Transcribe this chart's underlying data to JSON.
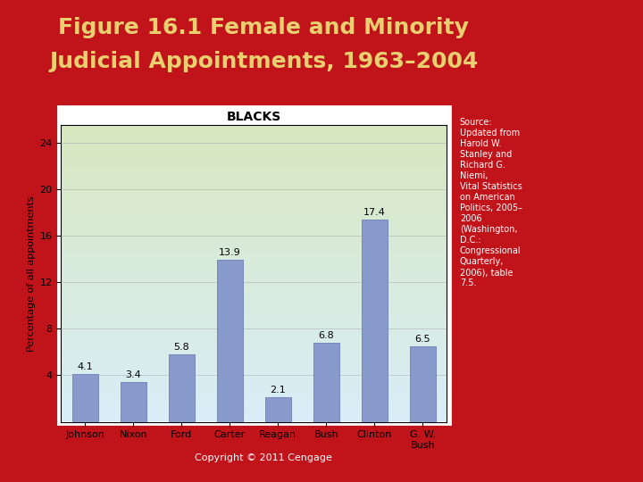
{
  "title_line1": "Figure 16.1 Female and Minority",
  "title_line2": "Judicial Appointments, 1963–2004",
  "title_color": "#E8D070",
  "title_fontsize": 18,
  "bg_color": "#C0141A",
  "chart_title": "BLACKS",
  "chart_title_fontsize": 10,
  "categories": [
    "Johnson",
    "Nixon",
    "Ford",
    "Carter",
    "Reagan",
    "Bush",
    "Clinton",
    "G. W.\nBush"
  ],
  "values": [
    4.1,
    3.4,
    5.8,
    13.9,
    2.1,
    6.8,
    17.4,
    6.5
  ],
  "bar_color": "#8899CC",
  "bar_edge_color": "#7788BB",
  "ylabel": "Percentage of all appointments",
  "ylabel_fontsize": 8,
  "yticks": [
    4,
    8,
    12,
    16,
    20,
    24
  ],
  "ytick_labels": [
    "4",
    "8",
    "12",
    "16",
    "20",
    "24"
  ],
  "ylim": [
    0,
    25.5
  ],
  "chart_bg_top": "#D8E8C0",
  "chart_bg_bottom": "#D8EEF8",
  "chart_outer_color": "#FFFFFF",
  "source_text": "Source:\nUpdated from\nHarold W.\nStanley and\nRichard G.\nNiemi,\nVital Statistics\non American\nPolitics, 2005–\n2006\n(Washington,\nD.C.:\nCongressional\nQuarterly,\n2006), table\n7.5.",
  "source_fontsize": 7,
  "copyright_text": "Copyright © 2011 Cengage",
  "copyright_fontsize": 8,
  "value_fontsize": 8,
  "tick_fontsize": 8,
  "grid_color": "#BBBBBB"
}
